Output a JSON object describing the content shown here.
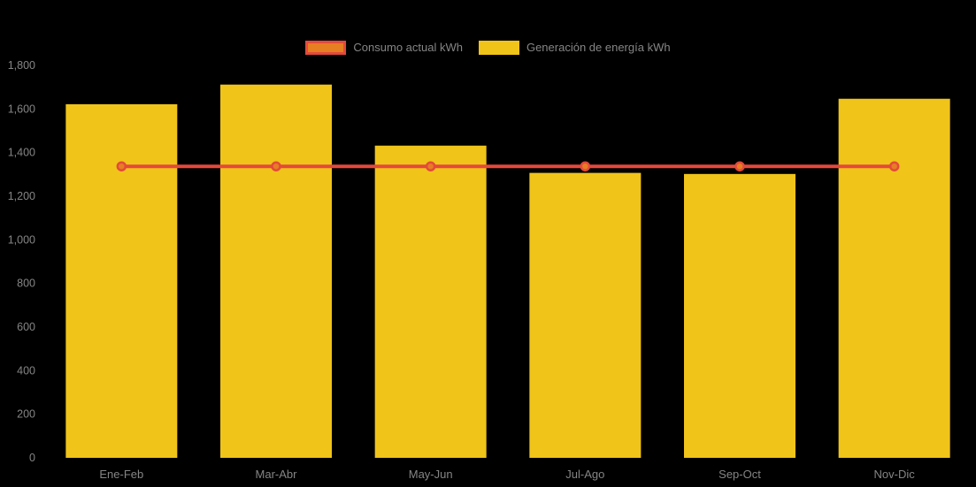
{
  "chart_data": {
    "type": "bar",
    "combo": true,
    "categories": [
      "Ene-Feb",
      "Mar-Abr",
      "May-Jun",
      "Jul-Ago",
      "Sep-Oct",
      "Nov-Dic"
    ],
    "series": [
      {
        "name": "Consumo actual kWh",
        "type": "line",
        "values": [
          1335,
          1335,
          1335,
          1335,
          1335,
          1335
        ],
        "line_color": "#e4493b",
        "point_fill_color": "#e67e22",
        "point_border_color": "#e4493b"
      },
      {
        "name": "Generación de energía kWh",
        "type": "bar",
        "values": [
          1620,
          1710,
          1430,
          1305,
          1300,
          1645
        ],
        "bar_color": "#f0c419"
      }
    ],
    "title": "",
    "xlabel": "",
    "ylabel": "",
    "ylim": [
      0,
      1800
    ],
    "ytick_labels": [
      "0",
      "200",
      "400",
      "600",
      "800",
      "1,000",
      "1,200",
      "1,400",
      "1,600",
      "1,800"
    ],
    "grid": false,
    "legend_position": "top-center",
    "background_color": "#000000",
    "text_color": "#858585"
  }
}
